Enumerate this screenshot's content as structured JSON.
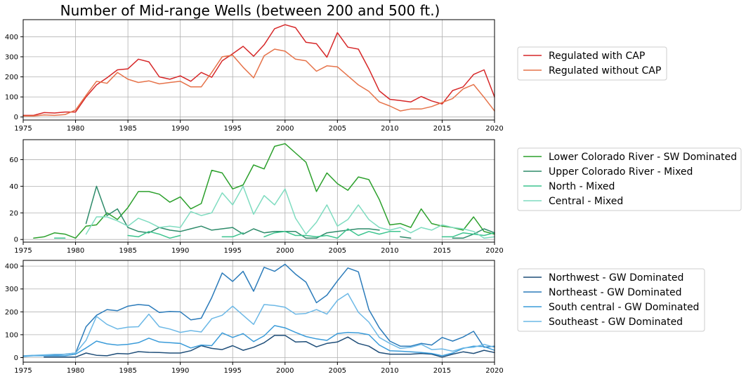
{
  "title": "Number of Mid-range Wells (between 200 and 500 ft.)",
  "chart_data": [
    {
      "type": "line",
      "xlim": [
        1975,
        2020
      ],
      "ylim": [
        -15,
        485
      ],
      "xticks": [
        1975,
        1980,
        1985,
        1990,
        1995,
        2000,
        2005,
        2010,
        2015,
        2020
      ],
      "yticks": [
        0,
        100,
        200,
        300,
        400
      ],
      "grid": true,
      "legend_position": "right",
      "series": [
        {
          "name": "Regulated with CAP",
          "color": "#d62728",
          "x": [
            1975,
            1976,
            1977,
            1978,
            1979,
            1980,
            1981,
            1982,
            1983,
            1984,
            1985,
            1986,
            1987,
            1988,
            1989,
            1990,
            1991,
            1992,
            1993,
            1994,
            1995,
            1996,
            1997,
            1998,
            1999,
            2000,
            2001,
            2002,
            2003,
            2004,
            2005,
            2006,
            2007,
            2008,
            2009,
            2010,
            2011,
            2012,
            2013,
            2014,
            2015,
            2016,
            2017,
            2018,
            2019,
            2020
          ],
          "y": [
            8,
            8,
            22,
            20,
            25,
            25,
            100,
            160,
            195,
            235,
            240,
            288,
            275,
            200,
            188,
            205,
            178,
            222,
            198,
            280,
            315,
            352,
            303,
            360,
            440,
            460,
            445,
            372,
            365,
            298,
            420,
            348,
            338,
            240,
            130,
            88,
            82,
            75,
            102,
            80,
            65,
            132,
            150,
            212,
            235,
            100
          ]
        },
        {
          "name": "Regulated without CAP",
          "color": "#e6734a",
          "x": [
            1975,
            1976,
            1977,
            1978,
            1979,
            1980,
            1981,
            1982,
            1983,
            1984,
            1985,
            1986,
            1987,
            1988,
            1989,
            1990,
            1991,
            1992,
            1993,
            1994,
            1995,
            1996,
            1997,
            1998,
            1999,
            2000,
            2001,
            2002,
            2003,
            2004,
            2005,
            2006,
            2007,
            2008,
            2009,
            2010,
            2011,
            2012,
            2013,
            2014,
            2015,
            2016,
            2017,
            2018,
            2019,
            2020
          ],
          "y": [
            5,
            5,
            10,
            8,
            12,
            35,
            108,
            178,
            168,
            222,
            188,
            172,
            180,
            165,
            172,
            178,
            150,
            150,
            222,
            300,
            308,
            248,
            195,
            305,
            338,
            328,
            288,
            280,
            228,
            255,
            250,
            205,
            160,
            128,
            75,
            55,
            30,
            40,
            40,
            52,
            72,
            92,
            140,
            162,
            98,
            30
          ]
        }
      ]
    },
    {
      "type": "line",
      "xlim": [
        1975,
        2020
      ],
      "ylim": [
        -2,
        75
      ],
      "xticks": [
        1975,
        1980,
        1985,
        1990,
        1995,
        2000,
        2005,
        2010,
        2015,
        2020
      ],
      "yticks": [
        0,
        20,
        40,
        60
      ],
      "grid": true,
      "legend_position": "right",
      "series": [
        {
          "name": "Lower Colorado River - SW Dominated",
          "color": "#2ca02c",
          "x": [
            1976,
            1977,
            1978,
            1979,
            1980,
            1981,
            1982,
            1983,
            1984,
            1985,
            1986,
            1987,
            1988,
            1989,
            1990,
            1991,
            1992,
            1993,
            1994,
            1995,
            1996,
            1997,
            1998,
            1999,
            2000,
            2001,
            2002,
            2003,
            2004,
            2005,
            2006,
            2007,
            2008,
            2009,
            2010,
            2011,
            2012,
            2013,
            2014,
            2015,
            2016,
            2017,
            2018,
            2019,
            2020
          ],
          "y": [
            1,
            2,
            5,
            4,
            1,
            10,
            11,
            20,
            15,
            24,
            36,
            36,
            34,
            28,
            32,
            23,
            27,
            52,
            50,
            38,
            41,
            56,
            53,
            70,
            72,
            65,
            58,
            36,
            50,
            42,
            37,
            47,
            45,
            30,
            11,
            12,
            9,
            23,
            12,
            10,
            9,
            7,
            17,
            6,
            4
          ]
        },
        {
          "name": "Upper Colorado River - Mixed",
          "color": "#2e8b6a",
          "x": [
            1981,
            1982,
            1983,
            1984,
            1985,
            1986,
            1987,
            1988,
            1989,
            1990,
            1991,
            1992,
            1993,
            1994,
            1995,
            1996,
            1997,
            1998,
            1999,
            2000,
            2001,
            2002,
            2003,
            2004,
            2005,
            2006,
            2007,
            2008,
            2009,
            2011,
            2012,
            2016,
            2017,
            2018,
            2019,
            2020
          ],
          "y": [
            12,
            40,
            18,
            23,
            9,
            6,
            5,
            9,
            7,
            6,
            8,
            10,
            7,
            8,
            9,
            4,
            8,
            5,
            6,
            6,
            6,
            1,
            1,
            5,
            6,
            7,
            8,
            8,
            7,
            2,
            1,
            1,
            1,
            4,
            8,
            5
          ],
          "breaks": [
            2009,
            2012
          ]
        },
        {
          "name": "North - Mixed",
          "color": "#3cc48e",
          "x": [
            1978,
            1979,
            1985,
            1986,
            1987,
            1988,
            1989,
            1990,
            1994,
            1995,
            1996,
            1998,
            1999,
            2000,
            2001,
            2002,
            2003,
            2004,
            2005,
            2006,
            2007,
            2008,
            2009,
            2010,
            2011,
            2015,
            2016,
            2017,
            2018,
            2019,
            2020
          ],
          "y": [
            1,
            1,
            3,
            2,
            6,
            4,
            1,
            3,
            2,
            2,
            5,
            2,
            5,
            6,
            3,
            3,
            2,
            3,
            1,
            8,
            3,
            6,
            4,
            6,
            6,
            2,
            2,
            5,
            4,
            3,
            5
          ],
          "breaks": [
            1979,
            1990,
            1996,
            2011
          ]
        },
        {
          "name": "Central - Mixed",
          "color": "#7fdcc0",
          "x": [
            1981,
            1982,
            1983,
            1984,
            1985,
            1986,
            1987,
            1988,
            1989,
            1990,
            1991,
            1992,
            1993,
            1994,
            1995,
            1996,
            1997,
            1998,
            1999,
            2000,
            2001,
            2002,
            2003,
            2004,
            2005,
            2006,
            2007,
            2008,
            2009,
            2010,
            2011,
            2012,
            2013,
            2014,
            2015,
            2016,
            2017,
            2018,
            2019,
            2020
          ],
          "y": [
            4,
            17,
            17,
            14,
            10,
            16,
            13,
            9,
            10,
            9,
            21,
            18,
            20,
            35,
            26,
            40,
            19,
            33,
            26,
            38,
            16,
            4,
            13,
            26,
            10,
            15,
            26,
            15,
            9,
            7,
            9,
            5,
            9,
            7,
            11,
            9,
            8,
            6,
            1,
            2
          ]
        }
      ]
    },
    {
      "type": "line",
      "xlim": [
        1975,
        2020
      ],
      "ylim": [
        -20,
        425
      ],
      "xticks": [
        1975,
        1980,
        1985,
        1990,
        1995,
        2000,
        2005,
        2010,
        2015,
        2020
      ],
      "yticks": [
        0,
        100,
        200,
        300,
        400
      ],
      "grid": true,
      "legend_position": "right",
      "series": [
        {
          "name": "Northwest - GW Dominated",
          "color": "#1f4e79",
          "x": [
            1977,
            1978,
            1979,
            1980,
            1981,
            1982,
            1983,
            1984,
            1985,
            1986,
            1987,
            1988,
            1989,
            1990,
            1991,
            1992,
            1993,
            1994,
            1995,
            1996,
            1997,
            1998,
            1999,
            2000,
            2001,
            2002,
            2003,
            2004,
            2005,
            2006,
            2007,
            2008,
            2009,
            2010,
            2011,
            2012,
            2013,
            2014,
            2015,
            2016,
            2017,
            2018,
            2019,
            2020
          ],
          "y": [
            2,
            2,
            2,
            2,
            20,
            10,
            8,
            18,
            16,
            26,
            23,
            22,
            20,
            20,
            30,
            52,
            40,
            35,
            52,
            32,
            45,
            65,
            97,
            97,
            68,
            70,
            47,
            62,
            68,
            90,
            62,
            50,
            22,
            15,
            15,
            15,
            18,
            15,
            2,
            15,
            25,
            18,
            32,
            22
          ]
        },
        {
          "name": "Northeast - GW Dominated",
          "color": "#2b7bba",
          "x": [
            1975,
            1976,
            1977,
            1978,
            1979,
            1980,
            1981,
            1982,
            1983,
            1984,
            1985,
            1986,
            1987,
            1988,
            1989,
            1990,
            1991,
            1992,
            1993,
            1994,
            1995,
            1996,
            1997,
            1998,
            1999,
            2000,
            2001,
            2002,
            2003,
            2004,
            2005,
            2006,
            2007,
            2008,
            2009,
            2010,
            2011,
            2012,
            2013,
            2014,
            2015,
            2016,
            2017,
            2018,
            2019,
            2020
          ],
          "y": [
            5,
            10,
            10,
            10,
            15,
            20,
            135,
            185,
            210,
            205,
            225,
            232,
            228,
            197,
            202,
            200,
            165,
            172,
            262,
            370,
            333,
            377,
            290,
            395,
            377,
            408,
            365,
            330,
            240,
            273,
            335,
            392,
            375,
            210,
            130,
            72,
            50,
            50,
            62,
            55,
            88,
            72,
            90,
            115,
            45,
            50
          ]
        },
        {
          "name": "South central - GW Dominated",
          "color": "#3a9bd9",
          "x": [
            1975,
            1976,
            1977,
            1978,
            1979,
            1980,
            1981,
            1982,
            1983,
            1984,
            1985,
            1986,
            1987,
            1988,
            1989,
            1990,
            1991,
            1992,
            1993,
            1994,
            1995,
            1996,
            1997,
            1998,
            1999,
            2000,
            2001,
            2002,
            2003,
            2004,
            2005,
            2006,
            2007,
            2008,
            2009,
            2010,
            2011,
            2012,
            2013,
            2014,
            2015,
            2016,
            2017,
            2018,
            2019,
            2020
          ],
          "y": [
            5,
            8,
            8,
            8,
            8,
            15,
            42,
            72,
            60,
            55,
            58,
            65,
            85,
            68,
            65,
            62,
            42,
            55,
            52,
            108,
            88,
            105,
            70,
            95,
            140,
            130,
            110,
            92,
            82,
            75,
            105,
            110,
            108,
            100,
            55,
            30,
            28,
            25,
            22,
            18,
            8,
            20,
            40,
            50,
            48,
            32
          ]
        },
        {
          "name": "Southeast - GW Dominated",
          "color": "#6cb8e6",
          "x": [
            1975,
            1976,
            1977,
            1978,
            1979,
            1980,
            1981,
            1982,
            1983,
            1984,
            1985,
            1986,
            1987,
            1988,
            1989,
            1990,
            1991,
            1992,
            1993,
            1994,
            1995,
            1996,
            1997,
            1998,
            1999,
            2000,
            2001,
            2002,
            2003,
            2004,
            2005,
            2006,
            2007,
            2008,
            2009,
            2010,
            2011,
            2012,
            2013,
            2014,
            2015,
            2016,
            2017,
            2018,
            2019,
            2020
          ],
          "y": [
            8,
            10,
            12,
            14,
            14,
            20,
            75,
            180,
            145,
            125,
            133,
            135,
            190,
            135,
            125,
            110,
            118,
            112,
            170,
            185,
            225,
            185,
            145,
            232,
            228,
            220,
            190,
            193,
            210,
            190,
            250,
            280,
            198,
            155,
            88,
            62,
            40,
            45,
            58,
            35,
            38,
            28,
            42,
            45,
            58,
            45
          ]
        }
      ]
    }
  ]
}
